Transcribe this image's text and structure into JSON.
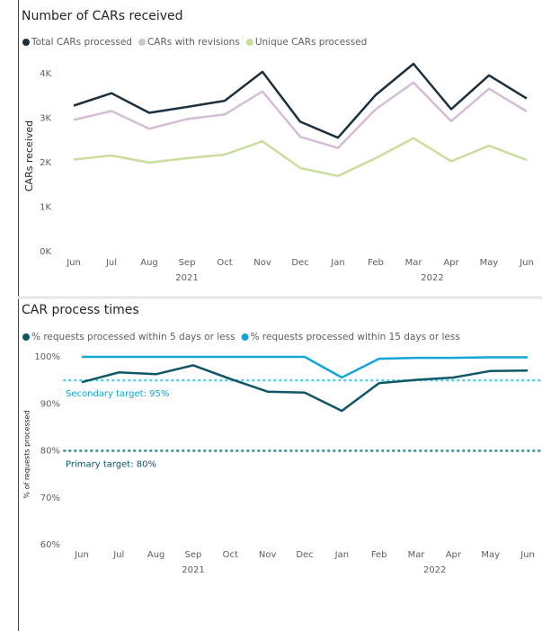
{
  "chart_data": [
    {
      "type": "line",
      "title": "Number of CARs received",
      "y_label": "CARs received",
      "categories": [
        "Jun",
        "Jul",
        "Aug",
        "Sep",
        "Oct",
        "Nov",
        "Dec",
        "Jan",
        "Feb",
        "Mar",
        "Apr",
        "May",
        "Jun"
      ],
      "x_groups": [
        "2021",
        "2022"
      ],
      "series": [
        {
          "name": "Total CARs processed",
          "color": "#1b2f3c",
          "values": [
            3280,
            3560,
            3120,
            3250,
            3390,
            4040,
            2920,
            2560,
            3520,
            4220,
            3200,
            3960,
            3440
          ]
        },
        {
          "name": "CARs with revisions",
          "color": "#d6bdd6",
          "marker_color": "#c8c8c8",
          "values": [
            2960,
            3160,
            2760,
            2980,
            3080,
            3600,
            2580,
            2330,
            3200,
            3800,
            2930,
            3660,
            3150
          ]
        },
        {
          "name": "Unique CARs processed",
          "color": "#c9dd9d",
          "values": [
            2070,
            2160,
            2000,
            2100,
            2180,
            2480,
            1880,
            1700,
            2100,
            2550,
            2030,
            2380,
            2060
          ]
        }
      ],
      "ylim": [
        0,
        4300
      ],
      "yticks": [
        {
          "value": 0,
          "label": "0K"
        },
        {
          "value": 1000,
          "label": "1K"
        },
        {
          "value": 2000,
          "label": "2K"
        },
        {
          "value": 3000,
          "label": "3K"
        },
        {
          "value": 4000,
          "label": "4K"
        }
      ],
      "grid": false
    },
    {
      "type": "line",
      "title": "CAR process times",
      "y_label": "% of requests processed",
      "categories": [
        "Jun",
        "Jul",
        "Aug",
        "Sep",
        "Oct",
        "Nov",
        "Dec",
        "Jan",
        "Feb",
        "Mar",
        "Apr",
        "May",
        "Jun"
      ],
      "x_groups": [
        "2021",
        "2022"
      ],
      "series": [
        {
          "name": "% requests processed within 5 days or less",
          "color": "#0f5667",
          "values": [
            94.6,
            96.7,
            96.3,
            98.2,
            95.3,
            92.6,
            92.4,
            88.5,
            94.4,
            95.1,
            95.6,
            97.0,
            97.1
          ]
        },
        {
          "name": "% requests processed within 15 days or less",
          "color": "#12a5d6",
          "values": [
            100,
            100,
            100,
            100,
            100,
            100,
            100,
            95.6,
            99.6,
            99.8,
            99.8,
            99.9,
            99.9
          ]
        }
      ],
      "reference_lines": [
        {
          "value": 95,
          "label": "Secondary target: 95%",
          "color": "#5ccbe6",
          "label_color": "#12a5d6"
        },
        {
          "value": 80,
          "label": "Primary target: 80%",
          "color": "#3a8a8f",
          "label_color": "#0f5667"
        }
      ],
      "ylim": [
        58,
        100.5
      ],
      "yticks": [
        {
          "value": 60,
          "label": "60%"
        },
        {
          "value": 70,
          "label": "70%"
        },
        {
          "value": 80,
          "label": "80%"
        },
        {
          "value": 90,
          "label": "90%"
        },
        {
          "value": 100,
          "label": "100%"
        }
      ],
      "grid": false
    }
  ]
}
